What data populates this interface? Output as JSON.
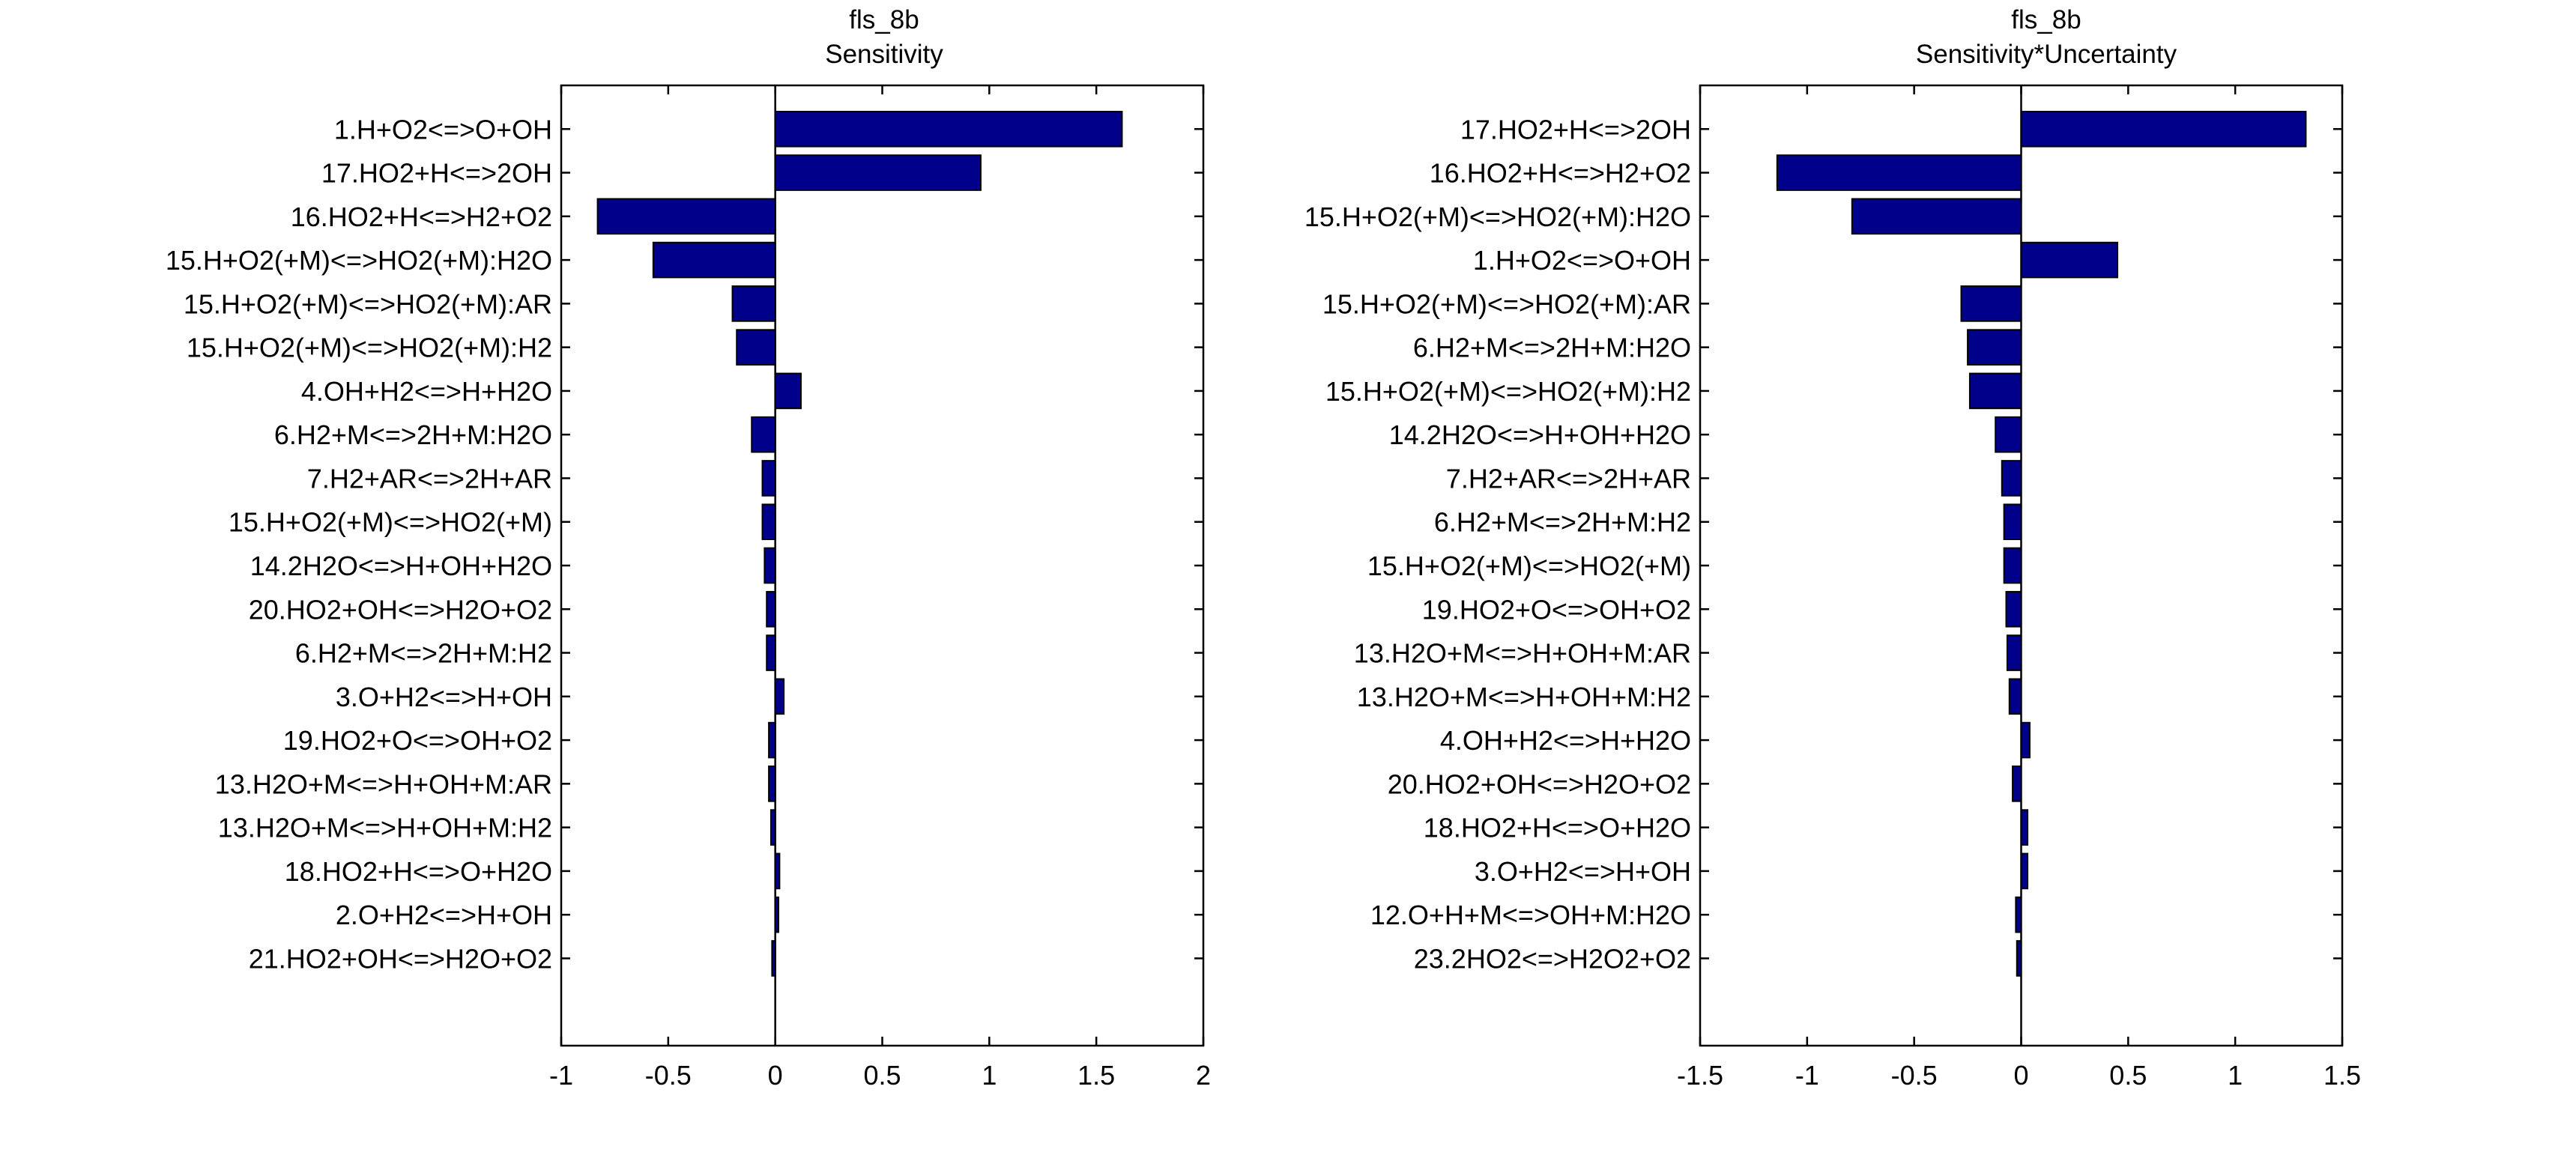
{
  "chart_data": [
    {
      "type": "bar",
      "orientation": "horizontal",
      "title": "fls_8b",
      "subtitle": "Sensitivity",
      "xlabel": "",
      "ylabel": "",
      "xlim": [
        -1,
        2
      ],
      "xticks": [
        -1,
        -0.5,
        0,
        0.5,
        1,
        1.5,
        2
      ],
      "tick_labels": [
        "-1",
        "-0.5",
        "0",
        "0.5",
        "1",
        "1.5",
        "2"
      ],
      "grid": false,
      "legend": "none",
      "bar_color": "#00008b",
      "categories": [
        "1.H+O2<=>O+OH",
        "17.HO2+H<=>2OH",
        "16.HO2+H<=>H2+O2",
        "15.H+O2(+M)<=>HO2(+M):H2O",
        "15.H+O2(+M)<=>HO2(+M):AR",
        "15.H+O2(+M)<=>HO2(+M):H2",
        "4.OH+H2<=>H+H2O",
        "6.H2+M<=>2H+M:H2O",
        "7.H2+AR<=>2H+AR",
        "15.H+O2(+M)<=>HO2(+M)",
        "14.2H2O<=>H+OH+H2O",
        "20.HO2+OH<=>H2O+O2",
        "6.H2+M<=>2H+M:H2",
        "3.O+H2<=>H+OH",
        "19.HO2+O<=>OH+O2",
        "13.H2O+M<=>H+OH+M:AR",
        "13.H2O+M<=>H+OH+M:H2",
        "18.HO2+H<=>O+H2O",
        "2.O+H2<=>H+OH",
        "21.HO2+OH<=>H2O+O2"
      ],
      "values": [
        1.62,
        0.96,
        -0.83,
        -0.57,
        -0.2,
        -0.18,
        0.12,
        -0.11,
        -0.06,
        -0.06,
        -0.05,
        -0.04,
        -0.04,
        0.04,
        -0.03,
        -0.03,
        -0.02,
        0.02,
        0.015,
        -0.015
      ]
    },
    {
      "type": "bar",
      "orientation": "horizontal",
      "title": "fls_8b",
      "subtitle": "Sensitivity*Uncertainty",
      "xlabel": "",
      "ylabel": "",
      "xlim": [
        -1.5,
        1.5
      ],
      "xticks": [
        -1.5,
        -1,
        -0.5,
        0,
        0.5,
        1,
        1.5
      ],
      "tick_labels": [
        "-1.5",
        "-1",
        "-0.5",
        "0",
        "0.5",
        "1",
        "1.5"
      ],
      "grid": false,
      "legend": "none",
      "bar_color": "#00008b",
      "categories": [
        "17.HO2+H<=>2OH",
        "16.HO2+H<=>H2+O2",
        "15.H+O2(+M)<=>HO2(+M):H2O",
        "1.H+O2<=>O+OH",
        "15.H+O2(+M)<=>HO2(+M):AR",
        "6.H2+M<=>2H+M:H2O",
        "15.H+O2(+M)<=>HO2(+M):H2",
        "14.2H2O<=>H+OH+H2O",
        "7.H2+AR<=>2H+AR",
        "6.H2+M<=>2H+M:H2",
        "15.H+O2(+M)<=>HO2(+M)",
        "19.HO2+O<=>OH+O2",
        "13.H2O+M<=>H+OH+M:AR",
        "13.H2O+M<=>H+OH+M:H2",
        "4.OH+H2<=>H+H2O",
        "20.HO2+OH<=>H2O+O2",
        "18.HO2+H<=>O+H2O",
        "3.O+H2<=>H+OH",
        "12.O+H+M<=>OH+M:H2O",
        "23.2HO2<=>H2O2+O2"
      ],
      "values": [
        1.33,
        -1.14,
        -0.79,
        0.45,
        -0.28,
        -0.25,
        -0.24,
        -0.12,
        -0.09,
        -0.08,
        -0.08,
        -0.07,
        -0.065,
        -0.055,
        0.04,
        -0.04,
        0.03,
        0.03,
        -0.025,
        -0.02
      ]
    }
  ]
}
